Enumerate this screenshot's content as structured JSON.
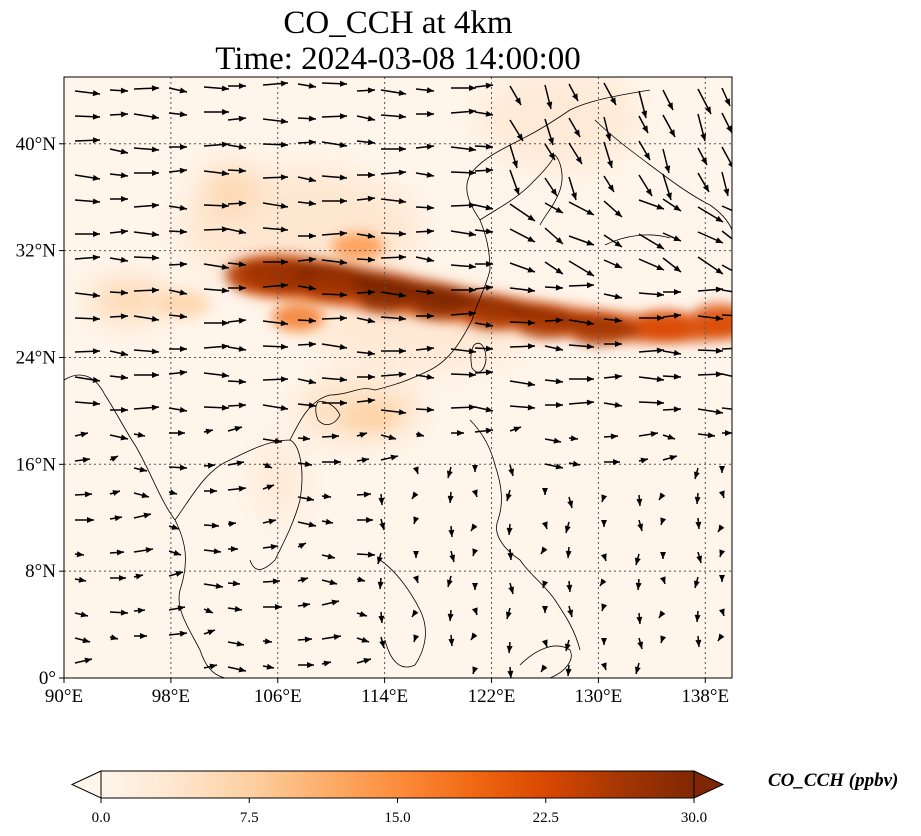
{
  "title": {
    "line1": "CO_CCH at 4km",
    "line2": "Time: 2024-03-08 14:00:00"
  },
  "map": {
    "lon_range": [
      90,
      140
    ],
    "lat_range": [
      0,
      45
    ],
    "lon_ticks": [
      {
        "value": 90,
        "label": "90°E"
      },
      {
        "value": 98,
        "label": "98°E"
      },
      {
        "value": 106,
        "label": "106°E"
      },
      {
        "value": 114,
        "label": "114°E"
      },
      {
        "value": 122,
        "label": "122°E"
      },
      {
        "value": 130,
        "label": "130°E"
      },
      {
        "value": 138,
        "label": "138°E"
      }
    ],
    "lat_ticks": [
      {
        "value": 0,
        "label": "0°"
      },
      {
        "value": 8,
        "label": "8°N"
      },
      {
        "value": 16,
        "label": "16°N"
      },
      {
        "value": 24,
        "label": "24°N"
      },
      {
        "value": 32,
        "label": "32°N"
      },
      {
        "value": 40,
        "label": "40°N"
      }
    ],
    "gridlines": "dotted",
    "plume": [
      {
        "lon": 104.0,
        "lat": 30.2,
        "value": 28
      },
      {
        "lon": 106.0,
        "lat": 30.0,
        "value": 26
      },
      {
        "lon": 110.0,
        "lat": 29.5,
        "value": 27
      },
      {
        "lon": 114.0,
        "lat": 28.5,
        "value": 29
      },
      {
        "lon": 118.0,
        "lat": 28.0,
        "value": 30
      },
      {
        "lon": 122.0,
        "lat": 27.2,
        "value": 28
      },
      {
        "lon": 126.0,
        "lat": 26.5,
        "value": 28
      },
      {
        "lon": 130.0,
        "lat": 26.0,
        "value": 27
      },
      {
        "lon": 135.0,
        "lat": 26.5,
        "value": 24
      },
      {
        "lon": 139.0,
        "lat": 27.0,
        "value": 22
      },
      {
        "lon": 107.5,
        "lat": 27.0,
        "value": 18
      },
      {
        "lon": 112.0,
        "lat": 32.3,
        "value": 14
      },
      {
        "lon": 99.0,
        "lat": 28.0,
        "value": 9
      },
      {
        "lon": 113.0,
        "lat": 19.5,
        "value": 6
      }
    ]
  },
  "colorbar": {
    "label": "CO_CCH (ppbv)",
    "min": 0,
    "max": 30,
    "extend": "both",
    "colors": [
      "#fff5eb",
      "#fee6ce",
      "#fdd0a2",
      "#fdae6b",
      "#fd8d3c",
      "#f16913",
      "#d94801",
      "#a63603",
      "#7f2704"
    ],
    "ticks": [
      {
        "value": 0,
        "label": "0.0"
      },
      {
        "value": 7.5,
        "label": "7.5"
      },
      {
        "value": 15,
        "label": "15.0"
      },
      {
        "value": 22.5,
        "label": "22.5"
      },
      {
        "value": 30,
        "label": "30.0"
      }
    ]
  }
}
